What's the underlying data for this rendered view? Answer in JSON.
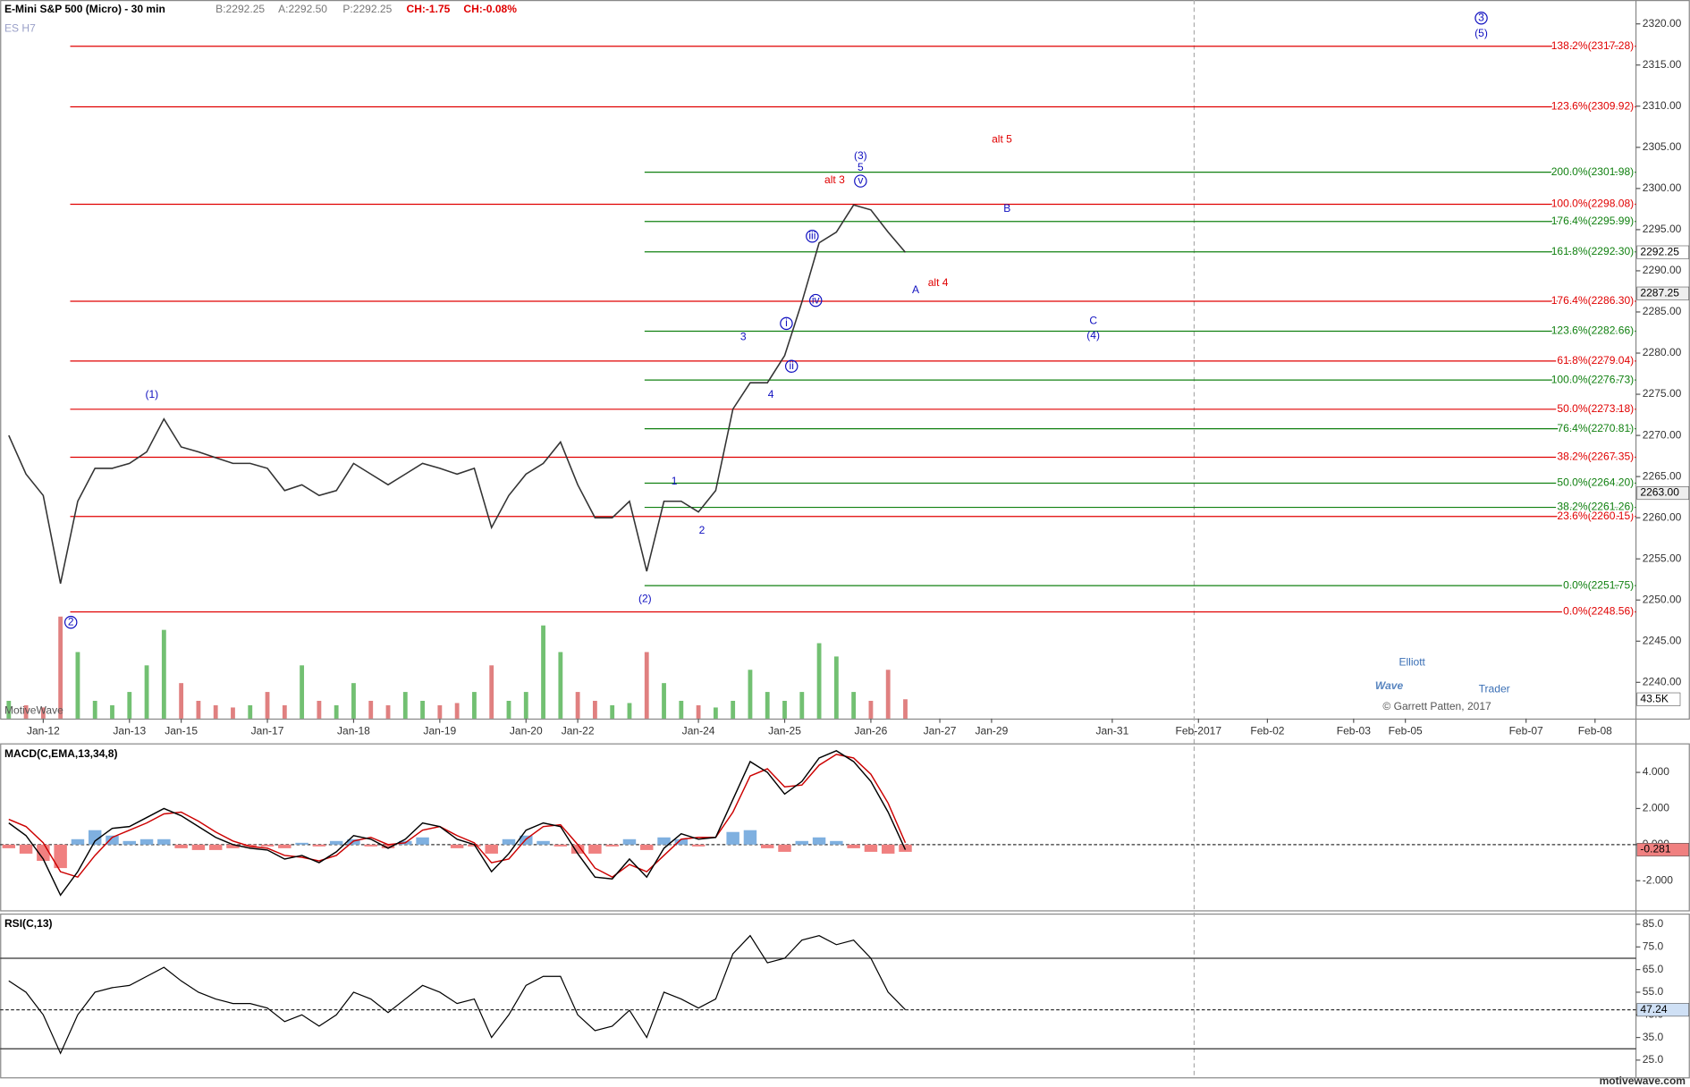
{
  "chart_data": [
    {
      "type": "line",
      "title": "E-Mini S&P 500 (Micro) - 30 min",
      "subtitle": "ES H7",
      "quote": [
        "B:2292.25",
        "A:2292.50",
        "P:2292.25",
        "CH:-1.75",
        "CH:-0.08%"
      ],
      "watermark": "MotiveWave",
      "categories": [
        null,
        null,
        "Jan-12",
        null,
        null,
        null,
        null,
        "Jan-13",
        null,
        null,
        "Jan-15",
        null,
        null,
        null,
        null,
        "Jan-17",
        null,
        null,
        null,
        null,
        "Jan-18",
        null,
        null,
        null,
        null,
        "Jan-19",
        null,
        null,
        null,
        null,
        "Jan-20",
        null,
        null,
        "Jan-22",
        null,
        null,
        null,
        null,
        null,
        null,
        "Jan-24",
        null,
        null,
        null,
        null,
        "Jan-25",
        null,
        null,
        null,
        null,
        "Jan-26",
        null,
        null,
        null,
        "Jan-27",
        null,
        null,
        "Jan-29",
        null,
        null,
        null,
        null,
        null,
        null,
        "Jan-31",
        null,
        null,
        null,
        null,
        "Feb-2017",
        null,
        null,
        null,
        "Feb-02",
        null,
        null,
        null,
        null,
        "Feb-03",
        null,
        null,
        "Feb-05",
        null,
        null,
        null,
        null,
        null,
        null,
        "Feb-07",
        null,
        null,
        null,
        "Feb-08",
        null,
        null
      ],
      "values": [
        2270,
        2265.3,
        2262.7,
        2252,
        2262,
        2266,
        2266,
        2266.6,
        2268,
        2272,
        2268.6,
        2268,
        2267.3,
        2266.6,
        2266.6,
        2266,
        2263.3,
        2264,
        2262.7,
        2263.3,
        2266.6,
        2265.3,
        2264,
        2265.3,
        2266.6,
        2266,
        2265.3,
        2266,
        2258.8,
        2262.7,
        2265.3,
        2266.6,
        2269.2,
        2264,
        2260,
        2260,
        2262,
        2253.5,
        2262,
        2262,
        2260.7,
        2263.3,
        2273.2,
        2276.4,
        2276.4,
        2279.7,
        2286.2,
        2293.4,
        2294.7,
        2298,
        2297.4,
        2294.7,
        2292.25,
        null,
        null,
        null,
        null,
        null,
        null,
        null,
        null,
        null,
        null,
        null,
        null,
        null,
        null,
        null,
        null,
        null,
        null,
        null,
        null,
        null,
        null,
        null,
        null,
        null,
        null,
        null,
        null,
        null,
        null,
        null,
        null,
        null,
        null,
        null,
        null,
        null,
        null,
        null,
        null,
        null,
        null
      ],
      "color": "#333333",
      "ylim": [
        2235.6,
        2322.9
      ],
      "yticks": [
        {
          "value": 2240,
          "label": "2240.00"
        },
        {
          "value": 2245,
          "label": "2245.00"
        },
        {
          "value": 2250,
          "label": "2250.00"
        },
        {
          "value": 2255,
          "label": "2255.00"
        },
        {
          "value": 2260,
          "label": "2260.00"
        },
        {
          "value": 2265,
          "label": "2265.00"
        },
        {
          "value": 2270,
          "label": "2270.00"
        },
        {
          "value": 2275,
          "label": "2275.00"
        },
        {
          "value": 2280,
          "label": "2280.00"
        },
        {
          "value": 2285,
          "label": "2285.00"
        },
        {
          "value": 2290,
          "label": "2290.00"
        },
        {
          "value": 2295,
          "label": "2295.00"
        },
        {
          "value": 2300,
          "label": "2300.00"
        },
        {
          "value": 2305,
          "label": "2305.00"
        },
        {
          "value": 2310,
          "label": "2310.00"
        },
        {
          "value": 2315,
          "label": "2315.00"
        },
        {
          "value": 2320,
          "label": "2320.00"
        }
      ],
      "volume": [
        40,
        30,
        25,
        230,
        150,
        40,
        30,
        60,
        120,
        200,
        80,
        40,
        30,
        25,
        30,
        60,
        30,
        120,
        40,
        30,
        80,
        40,
        30,
        60,
        40,
        30,
        35,
        60,
        120,
        40,
        60,
        210,
        150,
        60,
        40,
        30,
        35,
        150,
        80,
        40,
        30,
        25,
        40,
        110,
        60,
        40,
        60,
        170,
        140,
        60,
        40,
        110,
        43.5,
        null,
        null,
        null,
        null,
        null,
        null,
        null,
        null,
        null,
        null,
        null,
        null,
        null,
        null,
        null,
        null,
        null,
        null,
        null,
        null,
        null,
        null,
        null,
        null,
        null,
        null,
        null,
        null,
        null,
        null,
        null,
        null,
        null,
        null,
        null,
        null,
        null,
        null,
        null,
        null,
        null,
        null
      ],
      "volume_colors": [
        "#d86060",
        "#4fb04f"
      ],
      "y2lim": [
        0,
        260
      ],
      "y2ticks": [
        {
          "value": 43.5,
          "label": "43.5K"
        }
      ],
      "price_markers": [
        {
          "value": 2287.25,
          "label": "2287.25"
        },
        {
          "value": 2263,
          "label": "2263.00"
        }
      ],
      "fib_sets": [
        {
          "color": "#e00000",
          "levels": [
            {
              "label": "138.2%(2317.28)",
              "value": 2317.28
            },
            {
              "label": "123.6%(2309.92)",
              "value": 2309.92
            },
            {
              "label": "100.0%(2298.08)",
              "value": 2298.08
            },
            {
              "label": "176.4%(2286.30)",
              "value": 2286.3
            },
            {
              "label": "61.8%(2279.04)",
              "value": 2279.04
            },
            {
              "label": "50.0%(2273.18)",
              "value": 2273.18
            },
            {
              "label": "38.2%(2267.35)",
              "value": 2267.35
            },
            {
              "label": "23.6%(2260.15)",
              "value": 2260.15
            },
            {
              "label": "0.0%(2248.56)",
              "value": 2248.56
            }
          ]
        },
        {
          "color": "#108010",
          "levels": [
            {
              "label": "200.0%(2301.98)",
              "value": 2301.98
            },
            {
              "label": "176.4%(2295.99)",
              "value": 2295.99
            },
            {
              "label": "161.8%(2292.30)",
              "value": 2292.3
            },
            {
              "label": "123.6%(2282.66)",
              "value": 2282.66
            },
            {
              "label": "100.0%(2276.73)",
              "value": 2276.73
            },
            {
              "label": "76.4%(2270.81)",
              "value": 2270.81
            },
            {
              "label": "50.0%(2264.20)",
              "value": 2264.2
            },
            {
              "label": "38.2%(2261.26)",
              "value": 2261.26
            },
            {
              "label": "0.0%(2251.75)",
              "value": 2251.75
            }
          ]
        }
      ],
      "annotations": [
        {
          "text": "3",
          "x": 85.4,
          "y": 2320.7,
          "color": "#1010c0",
          "circled": true
        },
        {
          "text": "(5)",
          "x": 85.4,
          "y": 2318.8,
          "color": "#1010c0"
        },
        {
          "text": "(1)",
          "x": 8.3,
          "y": 2274.9,
          "color": "#1010c0"
        },
        {
          "text": "2",
          "x": 3.6,
          "y": 2247.3,
          "color": "#1010c0",
          "circled": true
        },
        {
          "text": "(2)",
          "x": 36.9,
          "y": 2250.1,
          "color": "#1010c0"
        },
        {
          "text": "1",
          "x": 38.6,
          "y": 2264.4,
          "color": "#1010c0"
        },
        {
          "text": "2",
          "x": 40.2,
          "y": 2258.4,
          "color": "#1010c0"
        },
        {
          "text": "3",
          "x": 42.6,
          "y": 2281.9,
          "color": "#1010c0"
        },
        {
          "text": "4",
          "x": 44.2,
          "y": 2274.9,
          "color": "#1010c0"
        },
        {
          "text": "i",
          "x": 45.1,
          "y": 2283.6,
          "color": "#1010c0",
          "circled": true
        },
        {
          "text": "ii",
          "x": 45.4,
          "y": 2278.4,
          "color": "#1010c0",
          "circled": true
        },
        {
          "text": "iii",
          "x": 46.6,
          "y": 2294.2,
          "color": "#1010c0",
          "circled": true
        },
        {
          "text": "iv",
          "x": 46.8,
          "y": 2286.4,
          "color": "#1010c0",
          "circled": true
        },
        {
          "text": "v",
          "x": 49.4,
          "y": 2300.9,
          "color": "#1010c0",
          "circled": true
        },
        {
          "text": "(3)",
          "x": 49.4,
          "y": 2303.9,
          "color": "#1010c0"
        },
        {
          "text": "5",
          "x": 49.4,
          "y": 2302.5,
          "color": "#1010c0"
        },
        {
          "text": "alt 3",
          "x": 47.9,
          "y": 2301.0,
          "color": "#e00000"
        },
        {
          "text": "alt 5",
          "x": 57.6,
          "y": 2305.9,
          "color": "#e00000"
        },
        {
          "text": "alt 4",
          "x": 53.9,
          "y": 2288.5,
          "color": "#e00000"
        },
        {
          "text": "A",
          "x": 52.6,
          "y": 2287.6,
          "color": "#1010c0"
        },
        {
          "text": "B",
          "x": 57.9,
          "y": 2297.5,
          "color": "#1010c0"
        },
        {
          "text": "C",
          "x": 62.9,
          "y": 2283.9,
          "color": "#1010c0"
        },
        {
          "text": "(4)",
          "x": 62.9,
          "y": 2282.1,
          "color": "#1010c0"
        }
      ]
    },
    {
      "type": "macd",
      "title": "MACD(C,EMA,13,34,8)",
      "values": [
        1.2,
        0.5,
        -0.8,
        -2.8,
        -1.5,
        0.2,
        0.9,
        1.0,
        1.5,
        2.0,
        1.6,
        1.0,
        0.4,
        0.0,
        -0.2,
        -0.3,
        -0.8,
        -0.6,
        -1.0,
        -0.4,
        0.5,
        0.3,
        -0.2,
        0.3,
        1.2,
        1.0,
        0.3,
        0.0,
        -1.5,
        -0.5,
        0.8,
        1.2,
        1.0,
        -0.5,
        -1.8,
        -1.9,
        -0.8,
        -1.8,
        -0.2,
        0.6,
        0.3,
        0.4,
        2.5,
        4.6,
        4.0,
        2.8,
        3.5,
        4.8,
        5.2,
        4.6,
        3.5,
        1.8,
        -0.281
      ],
      "signal": [
        1.4,
        1.0,
        0.1,
        -1.5,
        -1.8,
        -0.6,
        0.4,
        0.8,
        1.2,
        1.7,
        1.8,
        1.3,
        0.7,
        0.2,
        -0.1,
        -0.2,
        -0.6,
        -0.7,
        -0.9,
        -0.6,
        0.2,
        0.4,
        0.0,
        0.1,
        0.8,
        1.0,
        0.5,
        0.1,
        -1.0,
        -0.8,
        0.3,
        1.0,
        1.1,
        0.0,
        -1.3,
        -1.8,
        -1.1,
        -1.5,
        -0.6,
        0.3,
        0.4,
        0.4,
        1.8,
        3.8,
        4.2,
        3.2,
        3.3,
        4.4,
        5.0,
        4.8,
        3.9,
        2.3,
        0.1
      ],
      "histogram": [
        -0.2,
        -0.5,
        -0.9,
        -1.3,
        0.3,
        0.8,
        0.5,
        0.2,
        0.3,
        0.3,
        -0.2,
        -0.3,
        -0.3,
        -0.2,
        -0.1,
        -0.1,
        -0.2,
        0.1,
        -0.1,
        0.2,
        0.3,
        -0.1,
        -0.2,
        0.2,
        0.4,
        0.0,
        -0.2,
        -0.1,
        -0.5,
        0.3,
        0.5,
        0.2,
        -0.1,
        -0.5,
        -0.5,
        -0.1,
        0.3,
        -0.3,
        0.4,
        0.3,
        -0.1,
        0.0,
        0.7,
        0.8,
        -0.2,
        -0.4,
        0.2,
        0.4,
        0.2,
        -0.2,
        -0.4,
        -0.5,
        -0.4
      ],
      "color": "#000000",
      "signal_color": "#cc0000",
      "histogram_colors": [
        "#7fb0e0",
        "#f08080"
      ],
      "ylim": [
        -3.64,
        5.61
      ],
      "yticks": [
        {
          "value": 4,
          "label": "4.000"
        },
        {
          "value": 2,
          "label": "2.000"
        },
        {
          "value": 0,
          "label": "0.000"
        },
        {
          "value": -2,
          "label": "-2.000"
        }
      ]
    },
    {
      "type": "rsi",
      "title": "RSI(C,13)",
      "values": [
        60,
        55,
        45,
        28,
        45,
        55,
        57,
        58,
        62,
        66,
        60,
        55,
        52,
        50,
        50,
        48,
        42,
        45,
        40,
        45,
        55,
        52,
        46,
        52,
        58,
        55,
        50,
        52,
        35,
        45,
        58,
        62,
        62,
        45,
        38,
        40,
        47,
        35,
        55,
        52,
        48,
        52,
        72,
        80,
        68,
        70,
        78,
        80,
        76,
        78,
        70,
        55,
        47.24
      ],
      "color": "#000000",
      "bands": [
        30,
        70
      ],
      "ylim": [
        17.4,
        88.8
      ],
      "yticks": [
        {
          "value": 85,
          "label": "85.0"
        },
        {
          "value": 75,
          "label": "75.0"
        },
        {
          "value": 65,
          "label": "65.0"
        },
        {
          "value": 55,
          "label": "55.0"
        },
        {
          "value": 45,
          "label": "45.0"
        },
        {
          "value": 35,
          "label": "35.0"
        },
        {
          "value": 25,
          "label": "25.0"
        }
      ]
    }
  ],
  "logo": {
    "line1": "Elliott",
    "line2": "Wave",
    "line3": "Trader",
    "copyright": "© Garrett Patten, 2017"
  },
  "footer": "motivewave.com"
}
